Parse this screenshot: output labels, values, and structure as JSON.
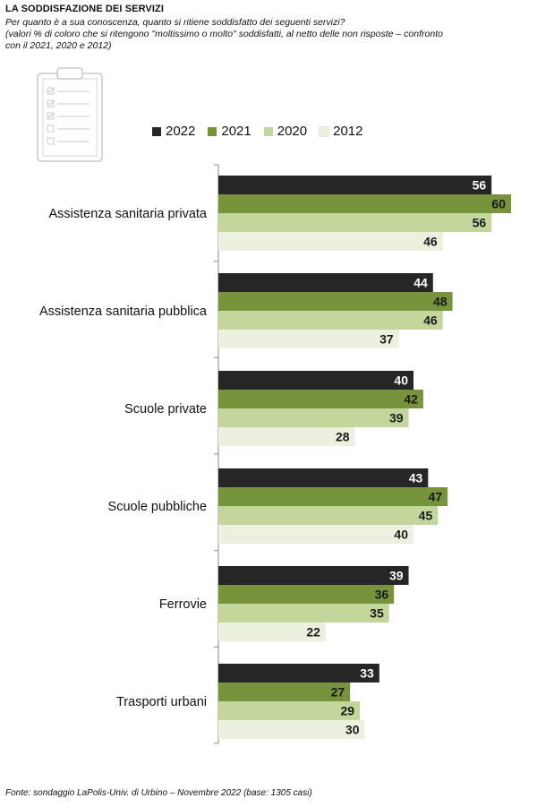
{
  "header": {
    "title": "LA SODDISFAZIONE DEI SERVIZI",
    "subtitle_lines": [
      "Per quanto è a sua conoscenza, quanto si ritiene soddisfatto dei seguenti servizi?",
      "(valori % di coloro che si ritengono \"moltissimo o molto\" soddisfatti, al netto delle non risposte – confronto",
      "con il 2021, 2020 e 2012)"
    ]
  },
  "source": "Fonte: sondaggio LaPolis-Univ. di Urbino – Novembre 2022 (base: 1305 casi)",
  "icons": {
    "decoration": "clipboard-checklist-icon"
  },
  "colors": {
    "2022": "#262626",
    "2021": "#77933c",
    "2020": "#c3d69b",
    "2012": "#ebf1de",
    "axis": "#888888"
  },
  "chart_data": {
    "type": "bar",
    "orientation": "horizontal",
    "categories": [
      "Assistenza sanitaria privata",
      "Assistenza sanitaria pubblica",
      "Scuole private",
      "Scuole pubbliche",
      "Ferrovie",
      "Trasporti urbani"
    ],
    "series": [
      {
        "name": "2022",
        "values": [
          56,
          44,
          40,
          43,
          39,
          33
        ]
      },
      {
        "name": "2021",
        "values": [
          60,
          48,
          42,
          47,
          36,
          27
        ]
      },
      {
        "name": "2020",
        "values": [
          56,
          46,
          39,
          45,
          35,
          29
        ]
      },
      {
        "name": "2012",
        "values": [
          46,
          37,
          28,
          40,
          22,
          30
        ]
      }
    ],
    "xlim": [
      0,
      60
    ],
    "grid": false,
    "legend_position": "top",
    "data_labels": true
  }
}
